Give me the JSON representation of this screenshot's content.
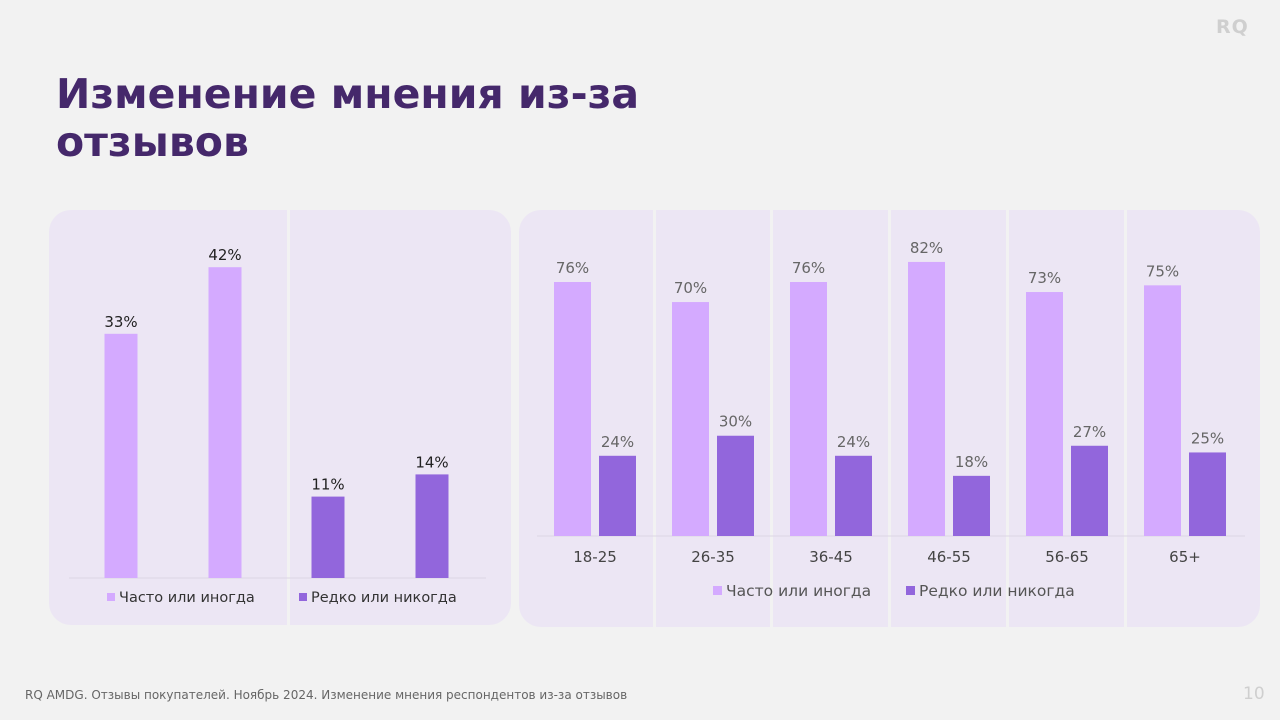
{
  "logo": "RQ",
  "title": "Изменение мнения из-за отзывов",
  "colors": {
    "often": "#d4aaff",
    "rare": "#9266dc",
    "title": "#45286b"
  },
  "chart_data": [
    {
      "type": "bar",
      "categories": [
        "Часто или иногда",
        "Редко или никогда"
      ],
      "series": [
        {
          "values": [
            33,
            11
          ],
          "labels": [
            "33%",
            "11%"
          ]
        },
        {
          "values": [
            42,
            14
          ],
          "labels": [
            "42%",
            "14%"
          ]
        }
      ],
      "legend": [
        "Часто или иногда",
        "Редко или никогда"
      ],
      "legend_position": "bottom",
      "ylim": [
        0,
        45
      ]
    },
    {
      "type": "bar",
      "categories": [
        "18-25",
        "26-35",
        "36-45",
        "46-55",
        "56-65",
        "65+"
      ],
      "series": [
        {
          "name": "Часто или иногда",
          "values": [
            76,
            70,
            76,
            82,
            73,
            75
          ],
          "labels": [
            "76%",
            "70%",
            "76%",
            "82%",
            "73%",
            "75%"
          ]
        },
        {
          "name": "Редко или никогда",
          "values": [
            24,
            30,
            24,
            18,
            27,
            25
          ],
          "labels": [
            "24%",
            "30%",
            "24%",
            "18%",
            "27%",
            "25%"
          ]
        }
      ],
      "legend_position": "bottom",
      "ylim": [
        0,
        100
      ]
    }
  ],
  "footer": "RQ AMDG. Отзывы покупателей. Ноябрь 2024. Изменение  мнения  респондентов из-за отзывов",
  "page_number": "10"
}
